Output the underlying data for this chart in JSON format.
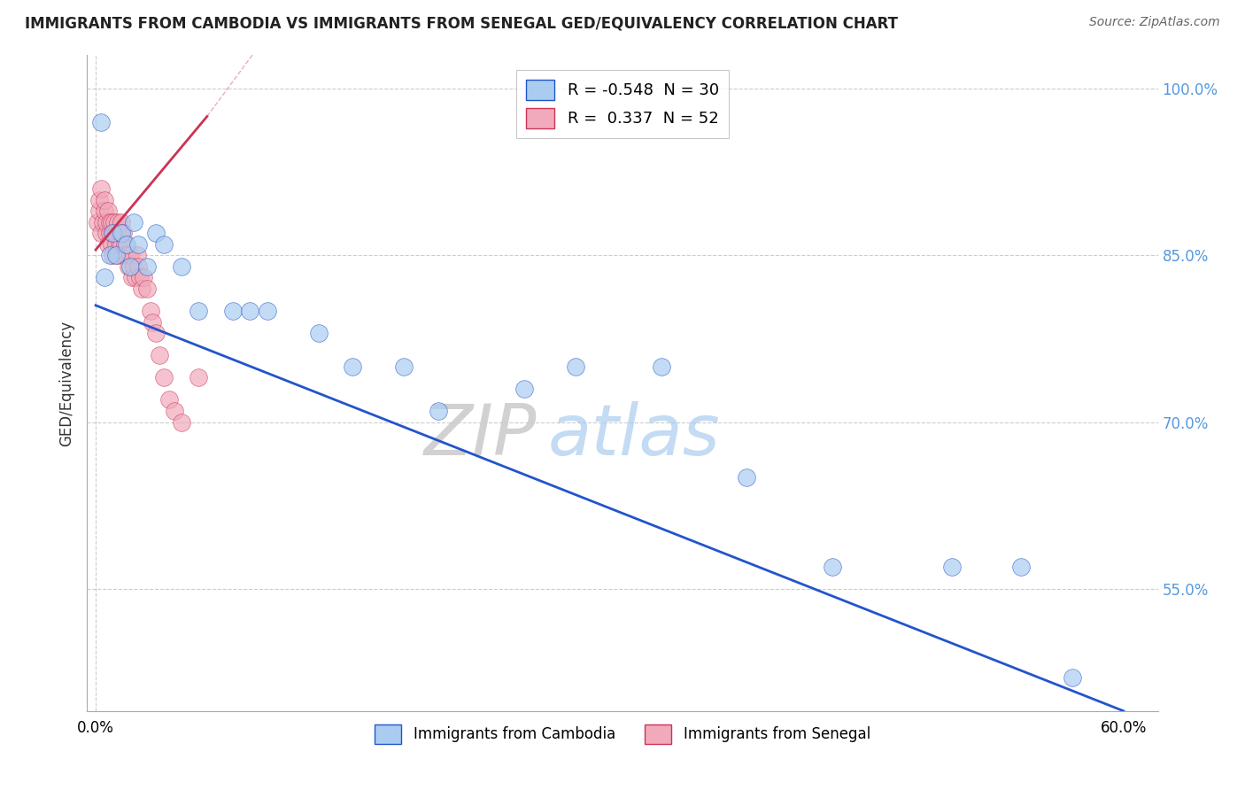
{
  "title": "IMMIGRANTS FROM CAMBODIA VS IMMIGRANTS FROM SENEGAL GED/EQUIVALENCY CORRELATION CHART",
  "source": "Source: ZipAtlas.com",
  "ylabel": "GED/Equivalency",
  "legend_label_cambodia": "Immigrants from Cambodia",
  "legend_label_senegal": "Immigrants from Senegal",
  "R_cambodia": -0.548,
  "N_cambodia": 30,
  "R_senegal": 0.337,
  "N_senegal": 52,
  "color_cambodia": "#aaccf0",
  "color_senegal": "#f0aabb",
  "line_color_cambodia": "#2255cc",
  "line_color_senegal": "#cc3355",
  "watermark_zip": "ZIP",
  "watermark_atlas": "atlas",
  "xlim_min": -0.005,
  "xlim_max": 0.62,
  "ylim_min": 0.44,
  "ylim_max": 1.03,
  "right_ytick_vals": [
    0.55,
    0.7,
    0.85,
    1.0
  ],
  "right_ytick_labels": [
    "55.0%",
    "70.0%",
    "85.0%",
    "100.0%"
  ],
  "xtick_vals": [
    0.0,
    0.6
  ],
  "xtick_labels": [
    "0.0%",
    "60.0%"
  ],
  "cam_line_x": [
    0.0,
    0.6
  ],
  "cam_line_y": [
    0.805,
    0.44
  ],
  "sen_line_x": [
    0.0,
    0.065
  ],
  "sen_line_y": [
    0.855,
    0.975
  ],
  "cambodia_x": [
    0.003,
    0.005,
    0.008,
    0.01,
    0.012,
    0.015,
    0.018,
    0.02,
    0.022,
    0.025,
    0.03,
    0.035,
    0.04,
    0.05,
    0.06,
    0.08,
    0.09,
    0.1,
    0.13,
    0.15,
    0.18,
    0.2,
    0.25,
    0.28,
    0.33,
    0.38,
    0.43,
    0.5,
    0.54,
    0.57
  ],
  "cambodia_y": [
    0.97,
    0.83,
    0.85,
    0.87,
    0.85,
    0.87,
    0.86,
    0.84,
    0.88,
    0.86,
    0.84,
    0.87,
    0.86,
    0.84,
    0.8,
    0.8,
    0.8,
    0.8,
    0.78,
    0.75,
    0.75,
    0.71,
    0.73,
    0.75,
    0.75,
    0.65,
    0.57,
    0.57,
    0.57,
    0.47
  ],
  "senegal_x": [
    0.001,
    0.002,
    0.002,
    0.003,
    0.003,
    0.004,
    0.005,
    0.005,
    0.006,
    0.006,
    0.007,
    0.007,
    0.008,
    0.008,
    0.009,
    0.009,
    0.01,
    0.01,
    0.011,
    0.011,
    0.012,
    0.012,
    0.013,
    0.013,
    0.014,
    0.014,
    0.015,
    0.015,
    0.016,
    0.016,
    0.017,
    0.018,
    0.019,
    0.02,
    0.021,
    0.022,
    0.023,
    0.024,
    0.025,
    0.026,
    0.027,
    0.028,
    0.03,
    0.032,
    0.033,
    0.035,
    0.037,
    0.04,
    0.043,
    0.046,
    0.05,
    0.06
  ],
  "senegal_y": [
    0.88,
    0.89,
    0.9,
    0.87,
    0.91,
    0.88,
    0.89,
    0.9,
    0.87,
    0.88,
    0.86,
    0.89,
    0.87,
    0.88,
    0.86,
    0.88,
    0.85,
    0.87,
    0.87,
    0.88,
    0.86,
    0.87,
    0.85,
    0.88,
    0.86,
    0.87,
    0.86,
    0.88,
    0.85,
    0.87,
    0.86,
    0.85,
    0.84,
    0.85,
    0.83,
    0.84,
    0.83,
    0.85,
    0.84,
    0.83,
    0.82,
    0.83,
    0.82,
    0.8,
    0.79,
    0.78,
    0.76,
    0.74,
    0.72,
    0.71,
    0.7,
    0.74
  ]
}
